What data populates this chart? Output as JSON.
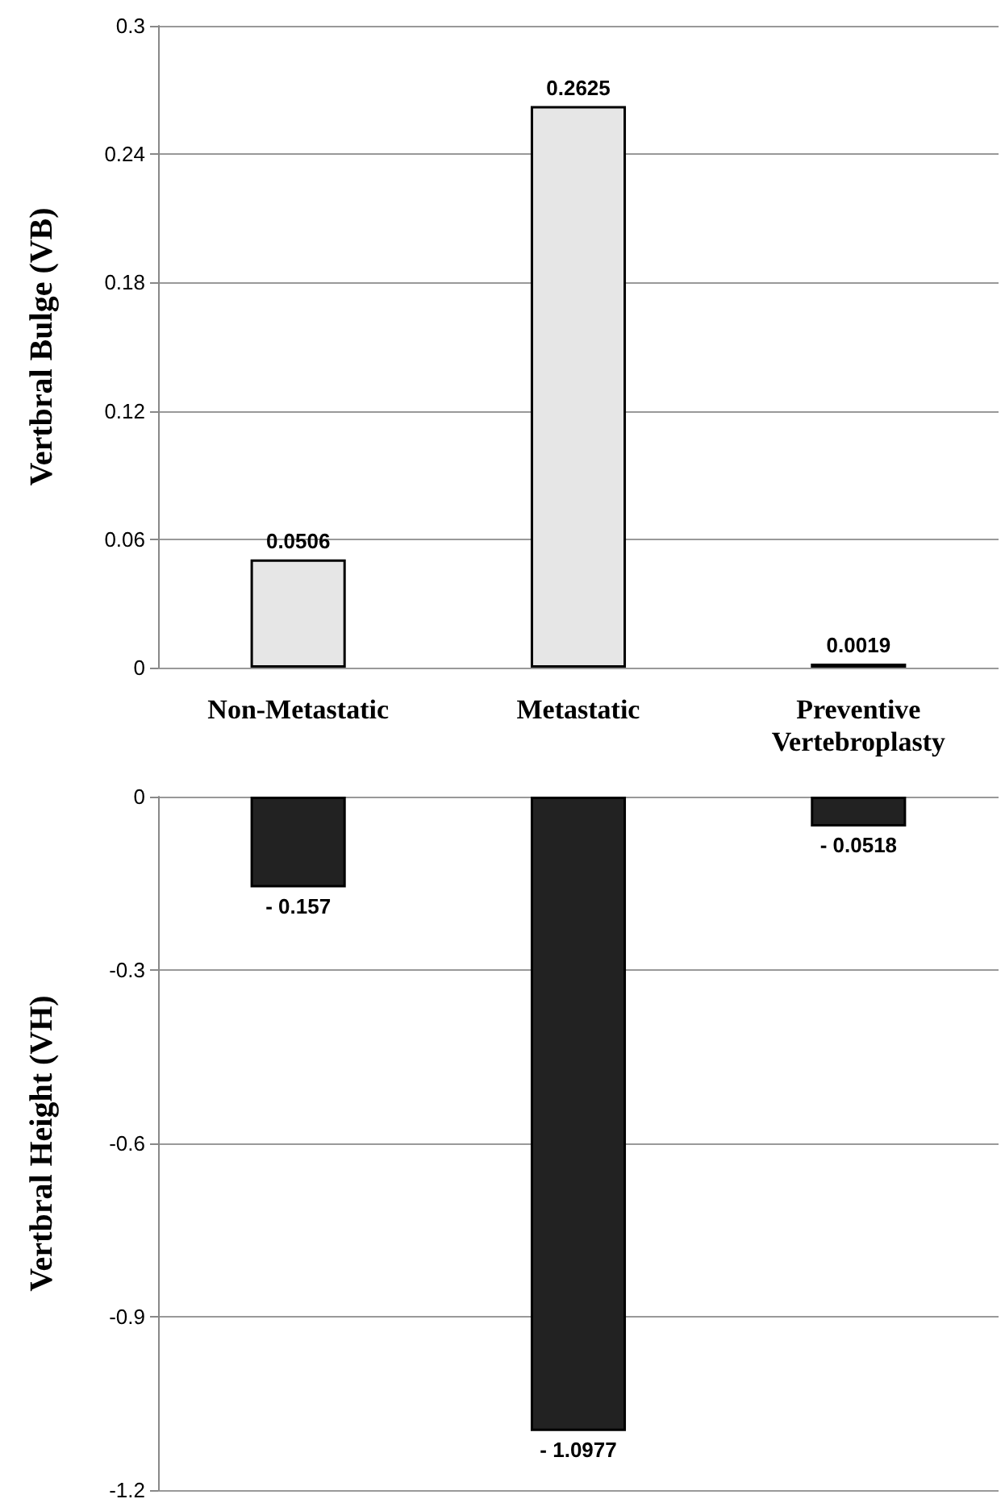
{
  "chart_data": [
    {
      "type": "bar",
      "ylabel": "Vertbral Bulge (VB)",
      "categories": [
        "Non-Metastatic",
        "Metastatic",
        "Preventive\nVertebroplasty"
      ],
      "values": [
        0.0506,
        0.2625,
        0.0019
      ],
      "color": "#e6e6e6",
      "data_labels": true,
      "ylim": [
        0,
        0.3
      ],
      "yticks": [
        0,
        0.06,
        0.12,
        0.18,
        0.24,
        0.3
      ],
      "grid": "y"
    },
    {
      "type": "bar",
      "ylabel": "Vertbral Height (VH)",
      "categories": [
        null,
        null,
        null
      ],
      "values": [
        -0.157,
        -1.0977,
        -0.0518
      ],
      "color": "#222222",
      "value_labels": [
        "- 0.157",
        "- 1.0977",
        "- 0.0518"
      ],
      "ylim": [
        -1.2,
        0
      ],
      "yticks": [
        0,
        -0.3,
        -0.6,
        -0.9,
        -1.2
      ],
      "grid": "y",
      "tick_labels": "y"
    }
  ]
}
